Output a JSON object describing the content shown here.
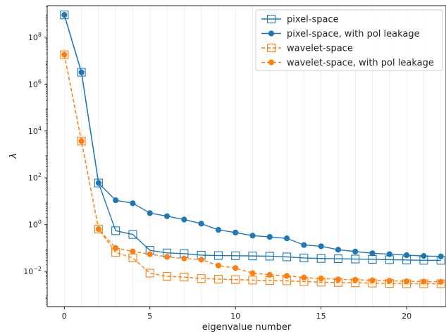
{
  "chart_data": {
    "type": "line",
    "xlabel": "eigenvalue number",
    "ylabel": "λ",
    "xlim": [
      -1,
      22.3
    ],
    "ylim_log10": [
      -3.5,
      9.35
    ],
    "yscale": "log",
    "grid": "vertical minor lines",
    "legend_position": "top-right",
    "x_ticks": [
      0,
      5,
      10,
      15,
      20
    ],
    "x_tick_labels": [
      "0",
      "5",
      "10",
      "15",
      "20"
    ],
    "y_tick_exponents": [
      -2,
      0,
      2,
      4,
      6,
      8
    ],
    "y_tick_labels": [
      {
        "base": "10",
        "exp": "−2"
      },
      {
        "base": "10",
        "exp": "0"
      },
      {
        "base": "10",
        "exp": "2"
      },
      {
        "base": "10",
        "exp": "4"
      },
      {
        "base": "10",
        "exp": "6"
      },
      {
        "base": "10",
        "exp": "8"
      }
    ],
    "x": [
      0,
      1,
      2,
      3,
      4,
      5,
      6,
      7,
      8,
      9,
      10,
      11,
      12,
      13,
      14,
      15,
      16,
      17,
      18,
      19,
      20,
      21,
      22
    ],
    "series": [
      {
        "name": "pixel-space",
        "color": "#1f77b4",
        "marker": "open-square",
        "linestyle": "solid",
        "values": [
          900000000,
          3200000,
          60,
          0.55,
          0.38,
          0.08,
          0.062,
          0.058,
          0.05,
          0.048,
          0.047,
          0.046,
          0.045,
          0.042,
          0.038,
          0.036,
          0.035,
          0.034,
          0.033,
          0.032,
          0.031,
          0.03,
          0.03
        ]
      },
      {
        "name": "pixel-space, with pol leakage",
        "color": "#1f77b4",
        "marker": "filled-circle",
        "linestyle": "solid",
        "values": [
          900000000,
          3200000,
          60,
          11,
          8.2,
          3.1,
          2.3,
          1.65,
          1.1,
          0.6,
          0.46,
          0.34,
          0.3,
          0.26,
          0.135,
          0.12,
          0.085,
          0.071,
          0.06,
          0.055,
          0.05,
          0.046,
          0.044
        ]
      },
      {
        "name": "wavelet-space",
        "color": "#ff7f0e",
        "marker": "open-square",
        "linestyle": "dashed",
        "values": [
          18000000,
          3700,
          0.65,
          0.065,
          0.038,
          0.0085,
          0.0062,
          0.0058,
          0.005,
          0.0047,
          0.0045,
          0.0043,
          0.0041,
          0.004,
          0.0037,
          0.0035,
          0.0034,
          0.0033,
          0.0032,
          0.0031,
          0.003,
          0.003,
          0.003
        ]
      },
      {
        "name": "wavelet-space, with pol leakage",
        "color": "#ff7f0e",
        "marker": "filled-circle",
        "linestyle": "dashed",
        "values": [
          18000000,
          3700,
          0.65,
          0.1,
          0.072,
          0.055,
          0.042,
          0.036,
          0.032,
          0.018,
          0.014,
          0.0085,
          0.0072,
          0.0065,
          0.0055,
          0.005,
          0.0046,
          0.0044,
          0.0042,
          0.004,
          0.0038,
          0.0037,
          0.0036
        ]
      }
    ]
  }
}
